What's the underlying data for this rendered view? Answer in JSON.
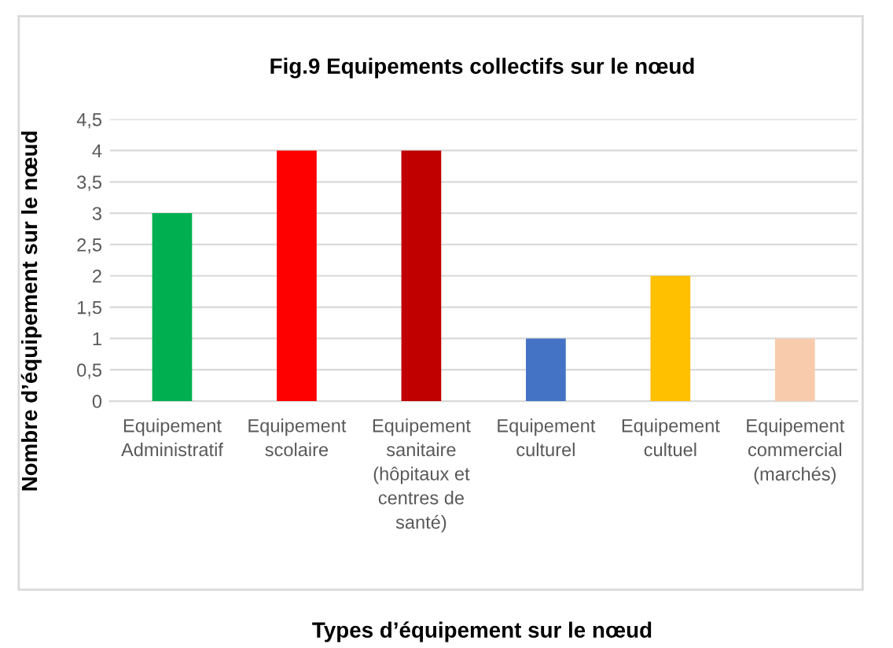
{
  "chart_data": {
    "type": "bar",
    "title": "Fig.9 Equipements collectifs sur le nœud",
    "xlabel": "Types d’équipement sur le nœud",
    "ylabel": "Nombre d’équipement sur le nœud",
    "categories": [
      "Equipement\nAdministratif",
      "Equipement\nscolaire",
      "Equipement\nsanitaire\n(hôpitaux et\ncentres de\nsanté)",
      "Equipement\nculturel",
      "Equipement\ncultuel",
      "Equipement\ncommercial\n(marchés)"
    ],
    "values": [
      3,
      4,
      4,
      1,
      2,
      1
    ],
    "colors": [
      "#00b050",
      "#ff0000",
      "#c00000",
      "#4472c4",
      "#ffc000",
      "#f8cbad"
    ],
    "ylim": [
      0,
      4.5
    ],
    "yticks": [
      0,
      {
        "value": 0.5,
        "label": "0,5"
      },
      1,
      {
        "value": 1.5,
        "label": "1,5"
      },
      2,
      {
        "value": 2.5,
        "label": "2,5"
      },
      3,
      {
        "value": 3.5,
        "label": "3,5"
      },
      4,
      {
        "value": 4.5,
        "label": "4,5"
      }
    ],
    "grid": "y",
    "legend": false
  }
}
